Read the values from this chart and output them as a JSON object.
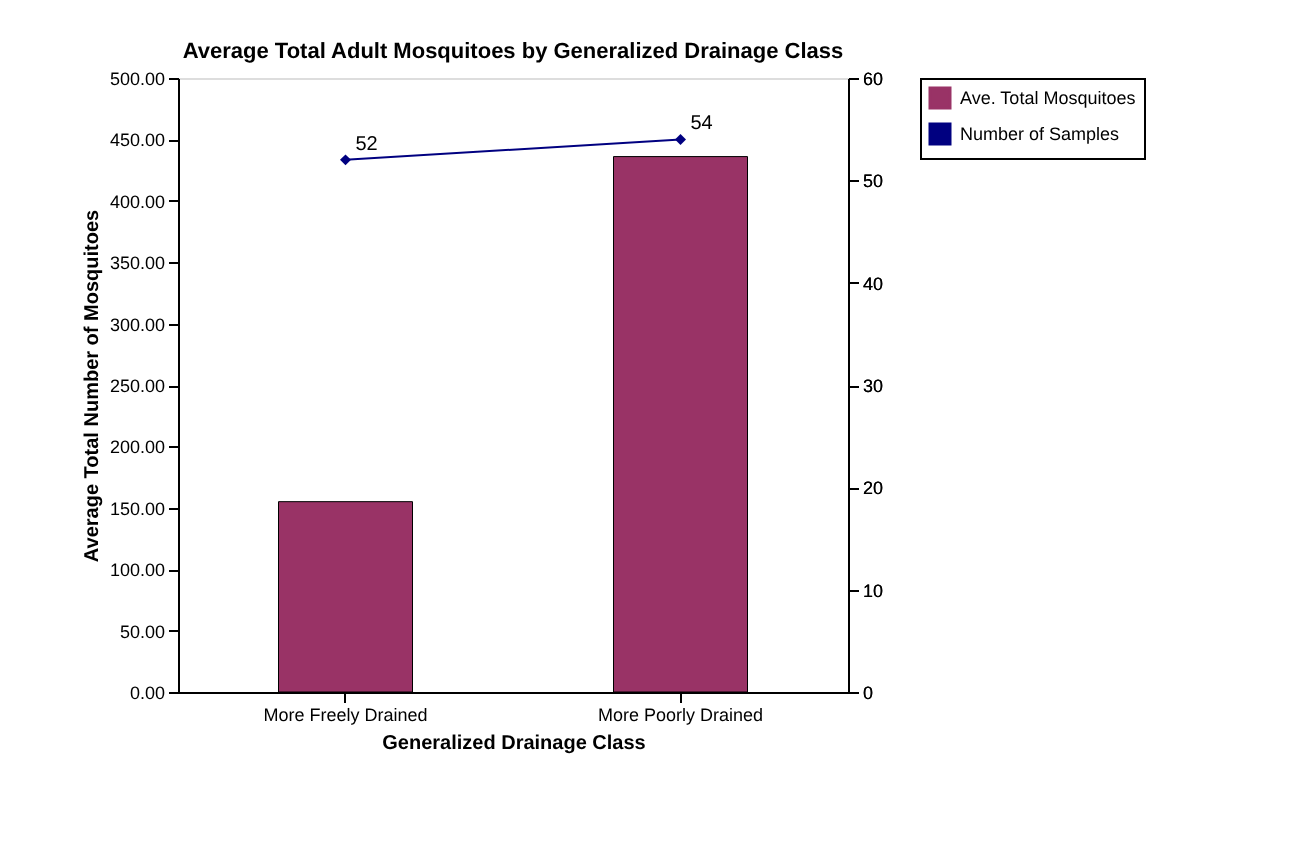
{
  "chart_data": {
    "type": "bar",
    "title": "Average Total Adult Mosquitoes by Generalized Drainage Class",
    "xlabel": "Generalized Drainage Class",
    "ylabel": "Average Total Number of Mosquitoes",
    "categories": [
      "More Freely Drained",
      "More Poorly Drained"
    ],
    "series": [
      {
        "name": "Ave. Total Mosquitoes",
        "color": "#993366",
        "values": [
          155,
          436
        ]
      },
      {
        "name": "Number of Samples",
        "type": "line",
        "axis": "y2",
        "marker": "diamond",
        "color": "#000080",
        "values": [
          52,
          54
        ],
        "value_labels": [
          "52",
          "54"
        ]
      }
    ],
    "ylim": [
      0,
      500
    ],
    "yticks": [
      {
        "value": 0,
        "label": "0.00"
      },
      {
        "value": 50,
        "label": "50.00"
      },
      {
        "value": 100,
        "label": "100.00"
      },
      {
        "value": 150,
        "label": "150.00"
      },
      {
        "value": 200,
        "label": "200.00"
      },
      {
        "value": 250,
        "label": "250.00"
      },
      {
        "value": 300,
        "label": "300.00"
      },
      {
        "value": 350,
        "label": "350.00"
      },
      {
        "value": 400,
        "label": "400.00"
      },
      {
        "value": 450,
        "label": "450.00"
      },
      {
        "value": 500,
        "label": "500.00"
      }
    ],
    "y2lim": [
      0,
      60
    ],
    "y2ticks": [
      0,
      10,
      20,
      30,
      40,
      50,
      60
    ],
    "grid": false,
    "legend": "right"
  }
}
